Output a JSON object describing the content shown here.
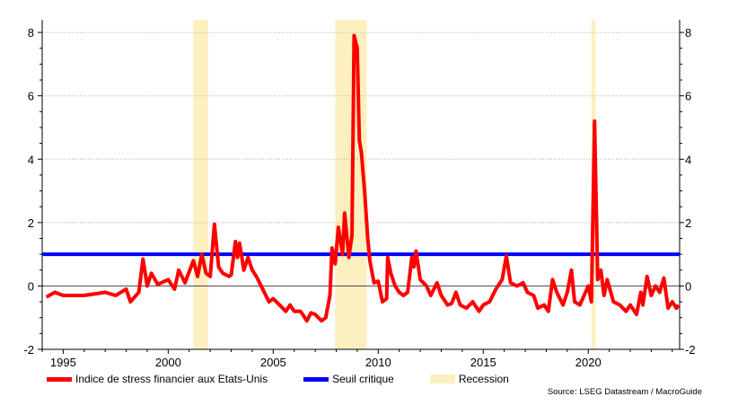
{
  "chart_data": {
    "type": "line",
    "xlim": [
      1994.0,
      2024.35
    ],
    "ylim": [
      -2,
      8.4
    ],
    "x_ticks": [
      "1995",
      "2000",
      "2005",
      "2010",
      "2015",
      "2020"
    ],
    "y_ticks": [
      "-2",
      "0",
      "2",
      "4",
      "6",
      "8"
    ],
    "grid": "horizontal dotted",
    "legend_position": "bottom",
    "colors": {
      "series": "#ff0000",
      "threshold": "#0000ff",
      "recession": "#fdf0c0",
      "zero": "#444444"
    },
    "recessions": [
      [
        2001.2,
        2001.9
      ],
      [
        2007.95,
        2009.45
      ],
      [
        2020.15,
        2020.35
      ]
    ],
    "threshold": {
      "name": "Seuil critique",
      "value": 1
    },
    "recession_label": "Recession",
    "series": [
      {
        "name": "Indice de stress financier aux Etats-Unis",
        "x": [
          1994.2,
          1994.6,
          1995,
          1995.5,
          1996,
          1996.5,
          1997,
          1997.5,
          1998,
          1998.2,
          1998.6,
          1998.8,
          1999,
          1999.2,
          1999.5,
          2000,
          2000.3,
          2000.5,
          2000.8,
          2001.2,
          2001.4,
          2001.6,
          2001.8,
          2002.0,
          2002.2,
          2002.4,
          2002.6,
          2002.9,
          2003.0,
          2003.2,
          2003.3,
          2003.4,
          2003.6,
          2003.8,
          2004,
          2004.2,
          2004.5,
          2004.8,
          2005,
          2005.3,
          2005.6,
          2005.8,
          2006,
          2006.3,
          2006.6,
          2006.8,
          2007,
          2007.3,
          2007.5,
          2007.7,
          2007.8,
          2007.95,
          2008.1,
          2008.3,
          2008.4,
          2008.6,
          2008.75,
          2008.85,
          2009.0,
          2009.1,
          2009.2,
          2009.35,
          2009.5,
          2009.6,
          2009.8,
          2010,
          2010.2,
          2010.4,
          2010.45,
          2010.6,
          2010.8,
          2011.0,
          2011.2,
          2011.4,
          2011.6,
          2011.7,
          2011.8,
          2012,
          2012.3,
          2012.5,
          2012.8,
          2013,
          2013.3,
          2013.5,
          2013.7,
          2013.9,
          2014.2,
          2014.5,
          2014.8,
          2015.0,
          2015.3,
          2015.6,
          2015.9,
          2016.1,
          2016.3,
          2016.6,
          2016.9,
          2017.1,
          2017.4,
          2017.6,
          2017.9,
          2018.1,
          2018.3,
          2018.5,
          2018.8,
          2019,
          2019.2,
          2019.35,
          2019.6,
          2019.8,
          2020.0,
          2020.15,
          2020.3,
          2020.45,
          2020.6,
          2020.75,
          2020.9,
          2021.2,
          2021.5,
          2021.8,
          2022.0,
          2022.3,
          2022.5,
          2022.6,
          2022.8,
          2023.0,
          2023.2,
          2023.4,
          2023.6,
          2023.8,
          2024,
          2024.2,
          2024.3
        ],
        "y": [
          -0.35,
          -0.2,
          -0.3,
          -0.3,
          -0.3,
          -0.25,
          -0.2,
          -0.3,
          -0.1,
          -0.5,
          -0.2,
          0.85,
          0.0,
          0.4,
          0.05,
          0.2,
          -0.1,
          0.5,
          0.1,
          0.8,
          0.3,
          1.0,
          0.4,
          0.3,
          1.95,
          0.6,
          0.4,
          0.3,
          0.35,
          1.4,
          0.9,
          1.35,
          0.5,
          0.9,
          0.5,
          0.3,
          -0.1,
          -0.5,
          -0.4,
          -0.6,
          -0.8,
          -0.6,
          -0.8,
          -0.8,
          -1.1,
          -0.85,
          -0.9,
          -1.1,
          -1.0,
          -0.3,
          1.2,
          0.7,
          1.85,
          1.0,
          2.3,
          0.9,
          1.6,
          7.9,
          7.5,
          4.6,
          4.2,
          3.0,
          1.5,
          0.8,
          0.1,
          0.15,
          -0.5,
          -0.4,
          0.9,
          0.4,
          0.0,
          -0.2,
          -0.3,
          -0.2,
          0.9,
          0.6,
          1.1,
          0.2,
          0.0,
          -0.3,
          0.1,
          -0.3,
          -0.6,
          -0.55,
          -0.2,
          -0.6,
          -0.7,
          -0.5,
          -0.8,
          -0.6,
          -0.5,
          -0.1,
          0.2,
          0.95,
          0.1,
          0.0,
          0.1,
          -0.2,
          -0.3,
          -0.7,
          -0.6,
          -0.8,
          0.2,
          -0.2,
          -0.6,
          -0.2,
          0.5,
          -0.5,
          -0.6,
          -0.3,
          0.0,
          -0.5,
          5.2,
          0.2,
          0.5,
          -0.3,
          0.2,
          -0.5,
          -0.6,
          -0.8,
          -0.6,
          -0.9,
          -0.2,
          -0.6,
          0.3,
          -0.3,
          0.0,
          -0.2,
          0.25,
          -0.7,
          -0.5,
          -0.7,
          -0.6
        ]
      }
    ]
  },
  "source": "Source: LSEG Datastream / MacroGuide"
}
